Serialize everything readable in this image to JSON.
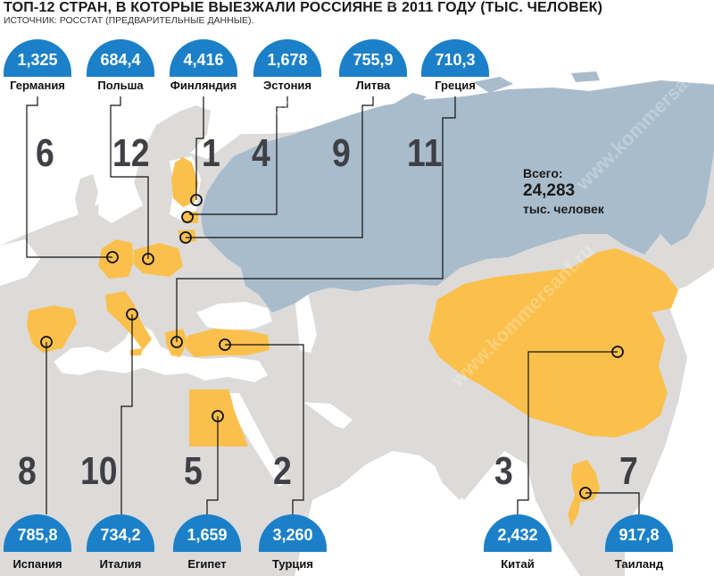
{
  "header": {
    "title": "ТОП-12 СТРАН, В КОТОРЫЕ ВЫЕЗЖАЛИ РОССИЯНЕ В 2011 ГОДУ (ТЫС. ЧЕЛОВЕК)",
    "source": "ИСТОЧНИК: РОССТАТ (ПРЕДВАРИТЕЛЬНЫЕ ДАННЫЕ)."
  },
  "total": {
    "label": "Всего:",
    "value": "24,283",
    "unit": "тыс. человек"
  },
  "colors": {
    "ocean": "#ffffff",
    "land": "#dcdbda",
    "russia": "#a9bccc",
    "highlight": "#fbc04c",
    "badge": "#1b80c8",
    "rank": "#3e4045"
  },
  "countries": [
    {
      "rank": "6",
      "name": "Германия",
      "value": "1,325"
    },
    {
      "rank": "12",
      "name": "Польша",
      "value": "684,4"
    },
    {
      "rank": "1",
      "name": "Финляндия",
      "value": "4,416"
    },
    {
      "rank": "4",
      "name": "Эстония",
      "value": "1,678"
    },
    {
      "rank": "9",
      "name": "Литва",
      "value": "755,9"
    },
    {
      "rank": "11",
      "name": "Греция",
      "value": "710,3"
    },
    {
      "rank": "8",
      "name": "Испания",
      "value": "785,8"
    },
    {
      "rank": "10",
      "name": "Италия",
      "value": "734,2"
    },
    {
      "rank": "5",
      "name": "Египет",
      "value": "1,659"
    },
    {
      "rank": "2",
      "name": "Турция",
      "value": "3,260"
    },
    {
      "rank": "3",
      "name": "Китай",
      "value": "2,432"
    },
    {
      "rank": "7",
      "name": "Таиланд",
      "value": "917,8"
    }
  ],
  "watermark": "www.kommersant.ru"
}
